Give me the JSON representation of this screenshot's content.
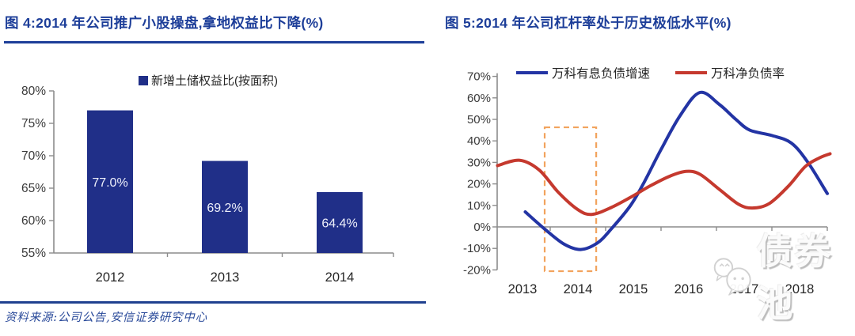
{
  "left_panel": {
    "title": "图 4:2014 年公司推广小股操盘,拿地权益比下降(%)",
    "source": "资料来源:公司公告,安信证券研究中心"
  },
  "right_panel": {
    "title": "图 5:2014 年公司杠杆率处于历史极低水平(%)"
  },
  "watermark": {
    "text": "债券池"
  },
  "colors": {
    "title_navy": "#1d3e99",
    "bar_fill": "#202f88",
    "bar_label": "#eef0fa",
    "blue_line": "#2334a4",
    "red_line": "#c5392e",
    "orange_box": "#f2a35d",
    "axis": "#8c8c8c",
    "tick_label": "#3a3a3a",
    "separator": "#20408f",
    "watermark_gray": "#cfcfcf"
  },
  "chart_data": [
    {
      "type": "bar",
      "legend": [
        "新增土储权益比(按面积)"
      ],
      "categories": [
        "2012",
        "2013",
        "2014"
      ],
      "values": [
        77.0,
        69.2,
        64.4
      ],
      "value_labels": [
        "77.0%",
        "69.2%",
        "64.4%"
      ],
      "ylim": [
        55,
        80
      ],
      "yticks": [
        80,
        75,
        70,
        65,
        60,
        55
      ],
      "ytick_labels": [
        "80%",
        "75%",
        "70%",
        "65%",
        "60%",
        "55%"
      ],
      "grid": false,
      "legend_position": "top"
    },
    {
      "type": "line",
      "x_labels": [
        "2013",
        "2014",
        "2015",
        "2016",
        "2017",
        "2018"
      ],
      "ylim": [
        -20,
        70
      ],
      "yticks": [
        70,
        60,
        50,
        40,
        30,
        20,
        10,
        0,
        -10,
        -20
      ],
      "ytick_labels": [
        "70%",
        "60%",
        "50%",
        "40%",
        "30%",
        "20%",
        "10%",
        "0%",
        "-10%",
        "-20%"
      ],
      "grid": false,
      "legend_position": "top",
      "highlight_box": {
        "x0": 2013.4,
        "x1": 2014.33,
        "y0": -20.6,
        "y1": 46.3
      },
      "series": [
        {
          "name": "万科有息负债增速",
          "color_key": "blue_line",
          "points": [
            [
              2013.05,
              7
            ],
            [
              2013.4,
              -1
            ],
            [
              2013.75,
              -8
            ],
            [
              2014.05,
              -10.5
            ],
            [
              2014.35,
              -7.5
            ],
            [
              2014.6,
              -1
            ],
            [
              2014.95,
              10
            ],
            [
              2015.2,
              21
            ],
            [
              2015.5,
              36
            ],
            [
              2015.85,
              52
            ],
            [
              2016.2,
              62.5
            ],
            [
              2016.55,
              57
            ],
            [
              2016.85,
              50
            ],
            [
              2017.1,
              45
            ],
            [
              2017.5,
              42.5
            ],
            [
              2017.85,
              39
            ],
            [
              2018.15,
              30
            ],
            [
              2018.5,
              15.5
            ]
          ]
        },
        {
          "name": "万科净负债率",
          "color_key": "red_line",
          "points": [
            [
              2012.55,
              28.5
            ],
            [
              2012.95,
              31
            ],
            [
              2013.3,
              26.5
            ],
            [
              2013.65,
              16
            ],
            [
              2014.0,
              8
            ],
            [
              2014.25,
              5.8
            ],
            [
              2014.6,
              9
            ],
            [
              2015.0,
              14.5
            ],
            [
              2015.3,
              19
            ],
            [
              2015.65,
              23.5
            ],
            [
              2015.95,
              25.8
            ],
            [
              2016.2,
              24.5
            ],
            [
              2016.55,
              17.5
            ],
            [
              2016.9,
              10.5
            ],
            [
              2017.15,
              8.8
            ],
            [
              2017.45,
              10.8
            ],
            [
              2017.8,
              19
            ],
            [
              2018.1,
              28
            ],
            [
              2018.35,
              32
            ],
            [
              2018.55,
              34
            ]
          ]
        }
      ]
    }
  ]
}
